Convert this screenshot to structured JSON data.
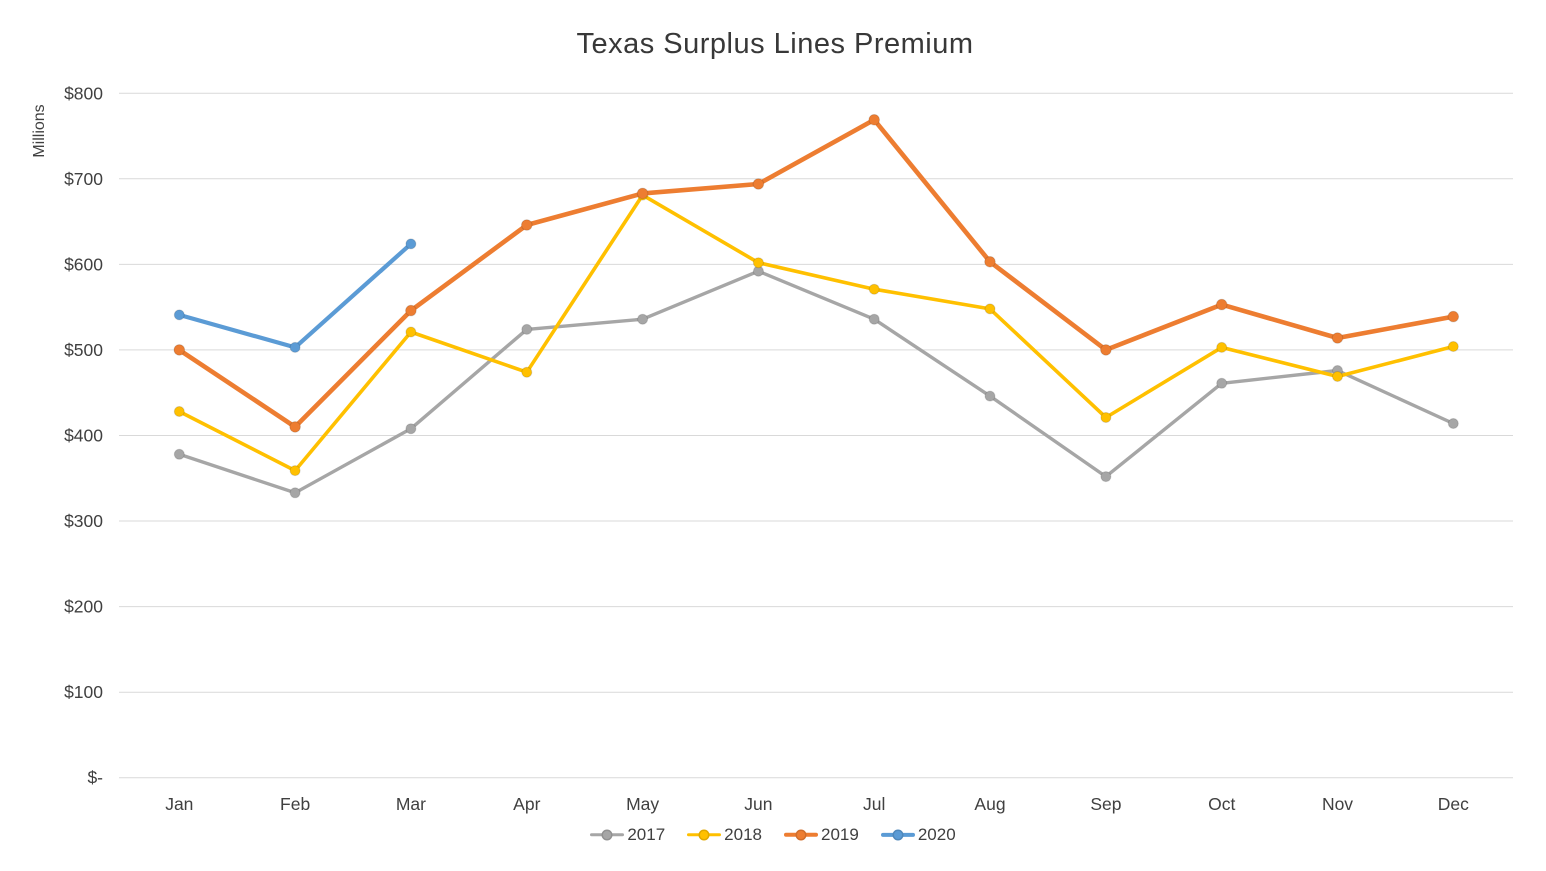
{
  "chart_data": {
    "type": "line",
    "title": "Texas Surplus Lines Premium",
    "xlabel": "",
    "ylabel": "Millions",
    "categories": [
      "Jan",
      "Feb",
      "Mar",
      "Apr",
      "May",
      "Jun",
      "Jul",
      "Aug",
      "Sep",
      "Oct",
      "Nov",
      "Dec"
    ],
    "series": [
      {
        "name": "2017",
        "color": "#A6A6A6",
        "values": [
          378,
          333,
          408,
          524,
          536,
          592,
          536,
          446,
          352,
          461,
          476,
          414
        ]
      },
      {
        "name": "2018",
        "color": "#FFC000",
        "values": [
          428,
          359,
          521,
          474,
          681,
          602,
          571,
          548,
          421,
          503,
          469,
          504
        ]
      },
      {
        "name": "2019",
        "color": "#ED7D31",
        "values": [
          500,
          410,
          546,
          646,
          683,
          694,
          769,
          603,
          500,
          553,
          514,
          539
        ]
      },
      {
        "name": "2020",
        "color": "#5B9BD5",
        "values": [
          541,
          503,
          624
        ]
      }
    ],
    "ylim": [
      0,
      800
    ],
    "ytick_step": 100,
    "ytick_labels": [
      "$-",
      "$100",
      "$200",
      "$300",
      "$400",
      "$500",
      "$600",
      "$700",
      "$800"
    ],
    "grid": true,
    "gridline_color": "#D9D9D9",
    "legend_position": "bottom",
    "legend_entries": [
      "2017",
      "2018",
      "2019",
      "2020"
    ]
  }
}
